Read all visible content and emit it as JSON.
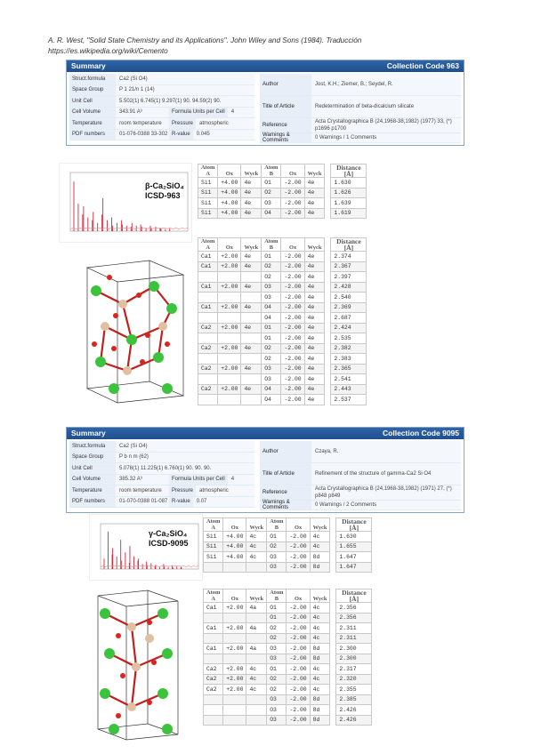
{
  "reference": {
    "line1": "A. R. West, \"Solid State Chemistry and its Applications\". John Wiley and Sons (1984). Traducción",
    "line2": "https://es.wikipedia.org/wiki/Cemento"
  },
  "card1": {
    "title": "Summary",
    "code": "Collection Code 963",
    "left": [
      {
        "label": "Struct.formula",
        "value": "Ca2 (Si O4)"
      },
      {
        "label": "Space Group",
        "value": "P 1 21/n 1 (14)"
      },
      {
        "label": "Unit Cell",
        "value": "5.502(1) 6.745(1) 9.297(1) 90. 94.59(2) 90."
      },
      {
        "label": "Cell Volume",
        "value": "343.91 A³",
        "label2": "Formula Units per Cell",
        "value2": "4"
      },
      {
        "label": "Temperature",
        "value": "room temperature",
        "label2": "Pressure",
        "value2": "atmospheric"
      },
      {
        "label": "PDF numbers",
        "value": "01-076-0388 33-302",
        "label2": "R-value",
        "value2": "0.045"
      }
    ],
    "right": [
      {
        "label": "Author",
        "value": "Jost, K.H.; Ziemer, B.; Seydel, R.",
        "h": 25
      },
      {
        "label": "Title of Article",
        "value": "Redetermination of beta-dicalcium silicate",
        "h": 25
      },
      {
        "label": "Reference",
        "value": "Acta Crystallographica B (24,1968-38,1982) (1977) 33, (*) p1696 p1700",
        "h": 17
      },
      {
        "label": "Warnings & Comments",
        "value": "0 Warnings / 1 Comments",
        "h": 11
      }
    ]
  },
  "card2": {
    "title": "Summary",
    "code": "Collection Code 9095",
    "left": [
      {
        "label": "Struct.formula",
        "value": "Ca2 (Si O4)"
      },
      {
        "label": "Space Group",
        "value": "P b n m (62)"
      },
      {
        "label": "Unit Cell",
        "value": "5.078(1) 11.225(1) 6.760(1) 90. 90. 90."
      },
      {
        "label": "Cell Volume",
        "value": "385.32 A³",
        "label2": "Formula Units per Cell",
        "value2": "4"
      },
      {
        "label": "Temperature",
        "value": "room temperature",
        "label2": "Pressure",
        "value2": "atmospheric"
      },
      {
        "label": "PDF numbers",
        "value": "01-070-0388 01-087",
        "label2": "R-value",
        "value2": "0.07"
      }
    ],
    "right": [
      {
        "label": "Author",
        "value": "Czaya, R.",
        "h": 25
      },
      {
        "label": "Title of Article",
        "value": "Refinement of the structure of gamma-Ca2 Si O4",
        "h": 25
      },
      {
        "label": "Reference",
        "value": "Acta Crystallographica B (24,1968-38,1982) (1971) 27, (*) p848 p849",
        "h": 17
      },
      {
        "label": "Warnings & Comments",
        "value": "0 Warnings / 2 Comments",
        "h": 11
      }
    ]
  },
  "spectrum1": {
    "label1": "β-Ca₂SiO₄",
    "label2": "ICSD-963",
    "heights": [
      0.9,
      0.5,
      0.3,
      0.45,
      0.25,
      0.2,
      0.35,
      0.15,
      0.3,
      0.6,
      0.2,
      0.25,
      0.1,
      0.15,
      0.2,
      0.12,
      0.1,
      0.08,
      0.15,
      0.1,
      0.12,
      0.08,
      0.06,
      0.1,
      0.05,
      0.08,
      0.06,
      0.05,
      0.04,
      0.05
    ]
  },
  "spectrum2": {
    "label1": "γ-Ca₂SiO₄",
    "label2": "ICSD-9095",
    "heights": [
      0.25,
      0.9,
      0.35,
      0.5,
      0.3,
      0.7,
      0.2,
      0.4,
      0.15,
      0.55,
      0.3,
      0.2,
      0.25,
      0.12,
      0.18,
      0.1,
      0.14,
      0.08,
      0.1,
      0.06,
      0.12,
      0.07,
      0.05,
      0.09,
      0.04,
      0.06,
      0.05,
      0.04
    ]
  },
  "tables": {
    "headers": {
      "atom": "Atom",
      "a": "A",
      "ox": "Ox",
      "wyck": "Wyck",
      "b": "B",
      "dist": "Distance",
      "unit": "[Å]"
    },
    "t1": [
      [
        "Si1",
        "+4.00",
        "4e",
        "O1",
        "-2.00",
        "4e",
        "1.630"
      ],
      [
        "Si1",
        "+4.00",
        "4e",
        "O2",
        "-2.00",
        "4e",
        "1.626"
      ],
      [
        "Si1",
        "+4.00",
        "4e",
        "O3",
        "-2.00",
        "4e",
        "1.639"
      ],
      [
        "Si1",
        "+4.00",
        "4e",
        "O4",
        "-2.00",
        "4e",
        "1.619"
      ]
    ],
    "t2": [
      [
        "Ca1",
        "+2.00",
        "4e",
        "O1",
        "-2.00",
        "4e",
        "2.374"
      ],
      [
        "Ca1",
        "+2.00",
        "4e",
        "O2",
        "-2.00",
        "4e",
        "2.367"
      ],
      [
        "",
        "",
        "",
        "O2",
        "-2.00",
        "4e",
        "2.397"
      ],
      [
        "Ca1",
        "+2.00",
        "4e",
        "O3",
        "-2.00",
        "4e",
        "2.428"
      ],
      [
        "",
        "",
        "",
        "O3",
        "-2.00",
        "4e",
        "2.540"
      ],
      [
        "Ca1",
        "+2.00",
        "4e",
        "O4",
        "-2.00",
        "4e",
        "2.369"
      ],
      [
        "",
        "",
        "",
        "O4",
        "-2.00",
        "4e",
        "2.687"
      ],
      [
        "Ca2",
        "+2.00",
        "4e",
        "O1",
        "-2.00",
        "4e",
        "2.424"
      ],
      [
        "",
        "",
        "",
        "O1",
        "-2.00",
        "4e",
        "2.535"
      ],
      [
        "Ca2",
        "+2.00",
        "4e",
        "O2",
        "-2.00",
        "4e",
        "2.382"
      ],
      [
        "",
        "",
        "",
        "O2",
        "-2.00",
        "4e",
        "2.383"
      ],
      [
        "Ca2",
        "+2.00",
        "4e",
        "O3",
        "-2.00",
        "4e",
        "2.365"
      ],
      [
        "",
        "",
        "",
        "O3",
        "-2.00",
        "4e",
        "2.541"
      ],
      [
        "Ca2",
        "+2.00",
        "4e",
        "O4",
        "-2.00",
        "4e",
        "2.443"
      ],
      [
        "",
        "",
        "",
        "O4",
        "-2.00",
        "4e",
        "2.537"
      ]
    ],
    "t3": [
      [
        "Si1",
        "+4.00",
        "4c",
        "O1",
        "-2.00",
        "4c",
        "1.630"
      ],
      [
        "Si1",
        "+4.00",
        "4c",
        "O2",
        "-2.00",
        "4c",
        "1.655"
      ],
      [
        "Si1",
        "+4.00",
        "4c",
        "O3",
        "-2.00",
        "8d",
        "1.647"
      ],
      [
        "",
        "",
        "",
        "O3",
        "-2.00",
        "8d",
        "1.647"
      ]
    ],
    "t4": [
      [
        "Ca1",
        "+2.00",
        "4a",
        "O1",
        "-2.00",
        "4c",
        "2.356"
      ],
      [
        "",
        "",
        "",
        "O1",
        "-2.00",
        "4c",
        "2.356"
      ],
      [
        "Ca1",
        "+2.00",
        "4a",
        "O2",
        "-2.00",
        "4c",
        "2.311"
      ],
      [
        "",
        "",
        "",
        "O2",
        "-2.00",
        "4c",
        "2.311"
      ],
      [
        "Ca1",
        "+2.00",
        "4a",
        "O3",
        "-2.00",
        "8d",
        "2.300"
      ],
      [
        "",
        "",
        "",
        "O3",
        "-2.00",
        "8d",
        "2.300"
      ],
      [
        "Ca2",
        "+2.00",
        "4c",
        "O1",
        "-2.00",
        "4c",
        "2.317"
      ],
      [
        "Ca2",
        "+2.00",
        "4c",
        "O2",
        "-2.00",
        "4c",
        "2.320"
      ],
      [
        "Ca2",
        "+2.00",
        "4c",
        "O2",
        "-2.00",
        "4c",
        "2.355"
      ],
      [
        "",
        "",
        "",
        "O3",
        "-2.00",
        "8d",
        "2.385"
      ],
      [
        "",
        "",
        "",
        "O3",
        "-2.00",
        "8d",
        "2.426"
      ],
      [
        "",
        "",
        "",
        "O3",
        "-2.00",
        "8d",
        "2.426"
      ]
    ]
  }
}
